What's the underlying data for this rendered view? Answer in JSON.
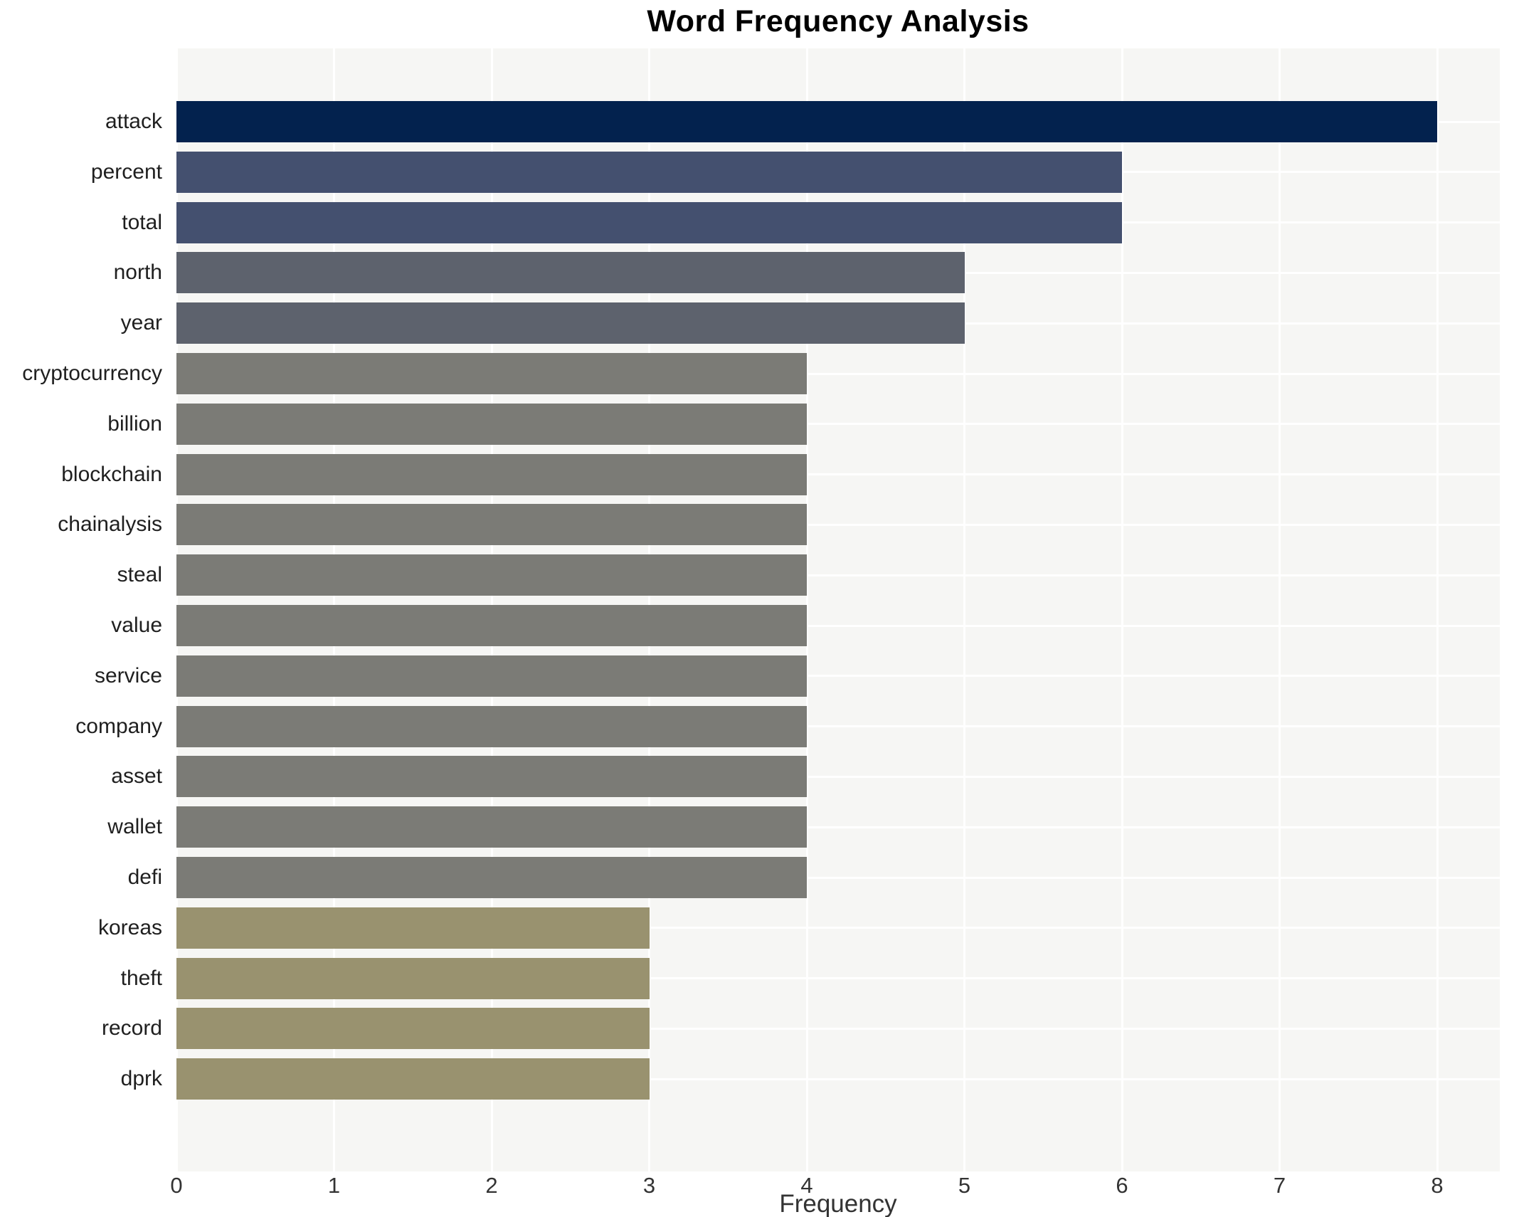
{
  "title": "Word Frequency Analysis",
  "chart_data": {
    "type": "bar",
    "orientation": "horizontal",
    "title": "Word Frequency Analysis",
    "xlabel": "Frequency",
    "ylabel": "",
    "categories": [
      "attack",
      "percent",
      "total",
      "north",
      "year",
      "cryptocurrency",
      "billion",
      "blockchain",
      "chainalysis",
      "steal",
      "value",
      "service",
      "company",
      "asset",
      "wallet",
      "defi",
      "koreas",
      "theft",
      "record",
      "dprk"
    ],
    "values": [
      8,
      6,
      6,
      5,
      5,
      4,
      4,
      4,
      4,
      4,
      4,
      4,
      4,
      4,
      4,
      4,
      3,
      3,
      3,
      3
    ],
    "bar_colors": [
      "#03224e",
      "#44506f",
      "#44506f",
      "#5d626d",
      "#5d626d",
      "#7b7b76",
      "#7b7b76",
      "#7b7b76",
      "#7b7b76",
      "#7b7b76",
      "#7b7b76",
      "#7b7b76",
      "#7b7b76",
      "#7b7b76",
      "#7b7b76",
      "#7b7b76",
      "#99926f",
      "#99926f",
      "#99926f",
      "#99926f"
    ],
    "x_ticks": [
      0,
      1,
      2,
      3,
      4,
      5,
      6,
      7,
      8
    ],
    "xlim": [
      0,
      8.4
    ],
    "grid": true,
    "legend": false,
    "plot_bg_color": "#f6f6f4",
    "grid_color": "#ffffff"
  }
}
